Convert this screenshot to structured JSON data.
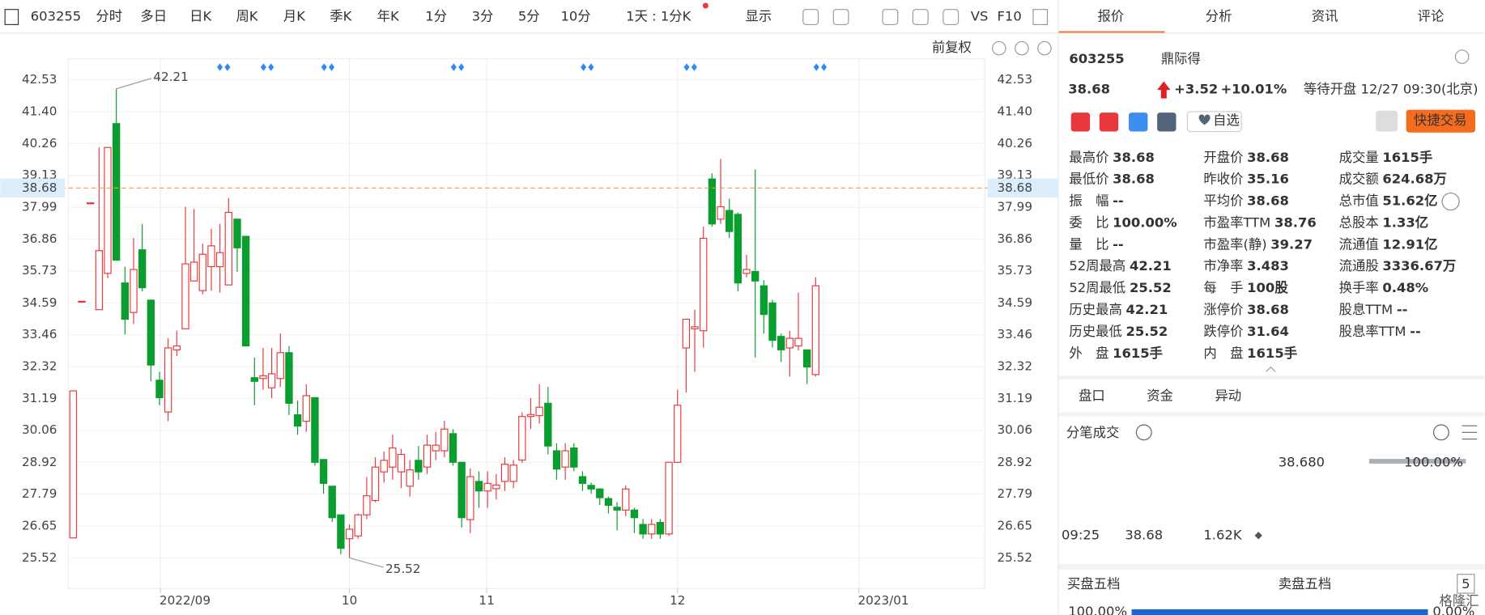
{
  "toolbar": {
    "code": "603255",
    "periods": [
      "分时",
      "多日",
      "日K",
      "周K",
      "月K",
      "季K",
      "年K",
      "1分",
      "3分",
      "5分",
      "10分"
    ],
    "range": "1天 : 1分K",
    "display": "显示",
    "vs": "VS",
    "f10": "F10"
  },
  "chart_controls": {
    "adjust": "前复权"
  },
  "chart_data": {
    "type": "candlestick",
    "open": [
      26.23,
      34.65,
      38.15,
      34.35,
      35.64,
      40.97,
      35.3,
      34.25,
      36.48,
      34.69,
      31.84,
      30.71,
      32.92,
      33.67,
      35.37,
      35.03,
      35.88,
      35.88,
      35.23,
      37.57,
      36.96,
      31.93,
      31.9,
      31.57,
      31.9,
      32.82,
      30.61,
      30.38,
      31.22,
      29.02,
      28.07,
      27.05,
      26.2,
      26.3,
      27.05,
      27.56,
      28.58,
      28.75,
      28.58,
      28.07,
      28.99,
      28.75,
      29.33,
      29.33,
      29.94,
      28.92,
      26.88,
      28.24,
      27.9,
      27.98,
      28.24,
      28.24,
      29.0,
      30.55,
      30.58,
      31.02,
      29.33,
      28.75,
      29.43,
      28.41,
      28.1,
      27.97,
      27.63,
      27.32,
      27.22,
      27.22,
      26.71,
      26.37,
      26.78,
      26.37,
      28.92,
      32.99,
      33.67,
      33.6,
      39.0,
      37.57,
      37.88,
      37.74,
      35.64,
      35.71,
      35.2,
      34.59,
      33.4,
      32.99,
      33.06,
      32.92,
      32.04
    ],
    "close": [
      31.46,
      34.65,
      38.15,
      36.45,
      40.12,
      36.11,
      34.01,
      35.78,
      35.13,
      32.38,
      31.22,
      32.99,
      33.06,
      35.98,
      36.04,
      36.32,
      36.62,
      36.38,
      37.81,
      36.55,
      33.06,
      31.8,
      32.0,
      32.07,
      32.82,
      31.02,
      30.21,
      31.29,
      28.92,
      28.17,
      26.95,
      25.86,
      26.54,
      27.05,
      27.73,
      28.75,
      28.99,
      29.43,
      29.2,
      28.65,
      28.58,
      29.53,
      29.53,
      30.1,
      28.92,
      26.95,
      28.41,
      27.9,
      28.17,
      28.11,
      28.85,
      28.82,
      30.55,
      30.62,
      30.88,
      29.5,
      28.68,
      29.33,
      28.75,
      28.17,
      27.97,
      27.66,
      27.39,
      27.22,
      27.97,
      26.95,
      26.37,
      26.71,
      26.37,
      28.92,
      30.95,
      34.01,
      33.74,
      36.89,
      37.4,
      38.01,
      37.13,
      35.3,
      35.78,
      35.37,
      34.18,
      33.26,
      32.92,
      33.33,
      33.33,
      32.31,
      35.2
    ],
    "high": [
      31.46,
      34.65,
      38.15,
      40.12,
      40.12,
      42.21,
      35.88,
      36.9,
      37.4,
      34.69,
      32.14,
      33.33,
      33.6,
      38.01,
      37.93,
      36.7,
      37.23,
      37.4,
      38.32,
      37.57,
      36.96,
      32.65,
      32.99,
      32.99,
      33.5,
      33.06,
      31.12,
      31.7,
      31.22,
      29.02,
      28.07,
      27.05,
      26.71,
      27.1,
      28.4,
      29.1,
      29.3,
      29.9,
      29.4,
      29.0,
      29.5,
      29.9,
      30.0,
      30.4,
      30.1,
      28.92,
      28.7,
      28.6,
      28.6,
      28.5,
      29.1,
      29.0,
      30.7,
      31.2,
      31.7,
      31.6,
      29.6,
      29.6,
      29.6,
      28.6,
      28.2,
      28.0,
      27.7,
      27.5,
      28.1,
      27.3,
      26.9,
      26.9,
      26.9,
      28.92,
      31.5,
      34.01,
      34.35,
      37.3,
      39.2,
      39.71,
      38.3,
      37.8,
      36.3,
      39.34,
      35.4,
      34.7,
      33.5,
      33.6,
      34.96,
      32.92,
      35.5
    ],
    "low": [
      26.23,
      34.65,
      38.15,
      34.35,
      35.47,
      36.11,
      33.47,
      33.84,
      35.0,
      31.8,
      30.95,
      30.38,
      32.7,
      33.67,
      35.37,
      34.9,
      35.03,
      34.96,
      35.23,
      35.7,
      33.06,
      30.95,
      31.5,
      31.2,
      31.6,
      30.6,
      29.9,
      30.0,
      28.8,
      27.8,
      26.8,
      25.65,
      25.52,
      26.2,
      26.9,
      27.5,
      28.2,
      28.3,
      28.0,
      27.7,
      28.3,
      28.5,
      29.0,
      29.1,
      28.8,
      26.6,
      26.4,
      27.3,
      27.3,
      27.6,
      27.9,
      28.0,
      28.9,
      30.1,
      30.3,
      29.2,
      28.3,
      28.3,
      28.6,
      27.9,
      27.8,
      27.4,
      27.1,
      26.5,
      27.0,
      26.4,
      26.2,
      26.2,
      26.2,
      26.3,
      28.9,
      31.4,
      32.14,
      33.0,
      37.3,
      37.4,
      36.9,
      35.0,
      35.5,
      32.65,
      33.5,
      33.0,
      32.5,
      31.97,
      32.9,
      31.7,
      31.97
    ],
    "up_color": "#e8383d",
    "down_color": "#0a9d2f",
    "ylim": [
      24.43,
      43.28
    ],
    "yticks": [
      25.52,
      26.65,
      27.79,
      28.92,
      30.06,
      31.19,
      32.32,
      33.46,
      34.59,
      35.73,
      36.86,
      37.99,
      39.13,
      40.26,
      {
        "value": 41.4,
        "label": "41.40"
      },
      42.53
    ],
    "xlim": [
      -0.55,
      105.6
    ],
    "xticks": [
      {
        "value": 10.1,
        "label": "2022/09"
      },
      {
        "value": 32.0,
        "label": "10"
      },
      {
        "value": 47.9,
        "label": "11"
      },
      {
        "value": 70.0,
        "label": "12"
      },
      {
        "value": 91.0,
        "label": "2023/01"
      }
    ],
    "grid": true,
    "price_line": 38.68,
    "price_line_color": "#f39c4a",
    "high_label": 42.21,
    "low_label": 25.52
  },
  "quote": {
    "tabs": [
      "报价",
      "分析",
      "资讯",
      "评论"
    ],
    "code": "603255",
    "name": "鼎际得",
    "price": "38.68",
    "change": "+3.52",
    "change_pct": "+10.01%",
    "status": "等待开盘 12/27 09:30(北京)",
    "watch": "自选",
    "trade": "快捷交易",
    "stats": [
      [
        {
          "label": "最高价",
          "value": "38.68",
          "color": "#e02020"
        },
        {
          "label": "最低价",
          "value": "38.68",
          "color": "#e02020"
        },
        {
          "label": "振　幅",
          "value": "--"
        },
        {
          "label": "委　比",
          "value": "100.00%"
        },
        {
          "label": "量　比",
          "value": "--"
        },
        {
          "label": "52周最高",
          "value": "42.21",
          "color": "#e02020"
        },
        {
          "label": "52周最低",
          "value": "25.52",
          "color": "#0a9d2f"
        },
        {
          "label": "历史最高",
          "value": "42.21",
          "color": "#e02020"
        },
        {
          "label": "历史最低",
          "value": "25.52",
          "color": "#0a9d2f"
        },
        {
          "label": "外　盘",
          "value": "1615手",
          "color": "#e02020"
        }
      ],
      [
        {
          "label": "开盘价",
          "value": "38.68",
          "color": "#e02020"
        },
        {
          "label": "昨收价",
          "value": "35.16"
        },
        {
          "label": "平均价",
          "value": "38.68",
          "color": "#e02020"
        },
        {
          "label": "市盈率TTM",
          "value": "38.76"
        },
        {
          "label": "市盈率(静)",
          "value": "39.27"
        },
        {
          "label": "市净率",
          "value": "3.483"
        },
        {
          "label": "每　手",
          "value": "100股"
        },
        {
          "label": "涨停价",
          "value": "38.68",
          "color": "#e02020"
        },
        {
          "label": "跌停价",
          "value": "31.64",
          "color": "#0a9d2f"
        },
        {
          "label": "内　盘",
          "value": "1615手",
          "color": "#0a9d2f"
        }
      ],
      [
        {
          "label": "成交量",
          "value": "1615手"
        },
        {
          "label": "成交额",
          "value": "624.68万"
        },
        {
          "label": "总市值",
          "value": "51.62亿"
        },
        {
          "label": "总股本",
          "value": "1.33亿"
        },
        {
          "label": "流通值",
          "value": "12.91亿"
        },
        {
          "label": "流通股",
          "value": "3336.67万"
        },
        {
          "label": "换手率",
          "value": "0.48%"
        },
        {
          "label": "股息TTM",
          "value": "--"
        },
        {
          "label": "股息率TTM",
          "value": "--"
        }
      ]
    ]
  },
  "panel": {
    "tabs": [
      "盘口",
      "资金",
      "异动"
    ],
    "ticks_title": "分笔成交",
    "summary_price": "38.680",
    "summary_pct": "100.00%",
    "rows": [
      [
        "09:25",
        "38.68",
        "1.62K"
      ]
    ],
    "buy_title": "买盘五档",
    "sell_title": "卖盘五档",
    "levels": "5",
    "buy_pct": "100.00%",
    "sell_pct": "0.00%"
  },
  "watermark": "格隆汇"
}
